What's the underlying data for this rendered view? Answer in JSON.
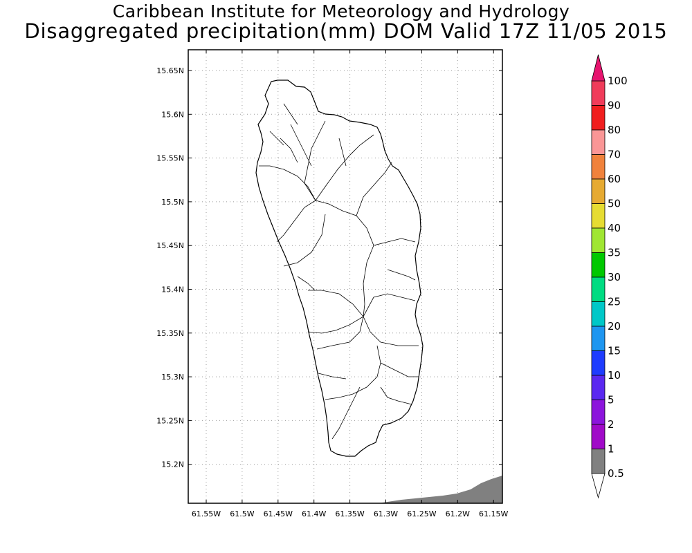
{
  "title": {
    "line1": "Caribbean Institute for Meteorology and Hydrology",
    "line2": "Disaggregated precipitation(mm) DOM Valid 17Z 11/05 2015"
  },
  "map": {
    "lat_ticks": [
      "15.65N",
      "15.6N",
      "15.55N",
      "15.5N",
      "15.45N",
      "15.4N",
      "15.35N",
      "15.3N",
      "15.25N",
      "15.2N"
    ],
    "lon_ticks": [
      "61.55W",
      "61.5W",
      "61.45W",
      "61.4W",
      "61.35W",
      "61.3W",
      "61.25W",
      "61.2W",
      "61.15W"
    ],
    "lat_values": [
      15.65,
      15.6,
      15.55,
      15.5,
      15.45,
      15.4,
      15.35,
      15.3,
      15.25,
      15.2
    ],
    "lon_values": [
      -61.55,
      -61.5,
      -61.45,
      -61.4,
      -61.35,
      -61.3,
      -61.25,
      -61.2,
      -61.15
    ],
    "grid": true,
    "land_outline_color": "#000000",
    "precip_shaded_color": "#808080"
  },
  "colorbar": {
    "labels": [
      "100",
      "90",
      "80",
      "70",
      "60",
      "50",
      "40",
      "35",
      "30",
      "25",
      "20",
      "15",
      "10",
      "5",
      "2",
      "1",
      "0.5"
    ],
    "colors": [
      "#f03c5a",
      "#f01e1e",
      "#fa9696",
      "#f0823c",
      "#e6aa32",
      "#e6dc32",
      "#a0e632",
      "#00c800",
      "#00dc82",
      "#00c8c8",
      "#1e96f0",
      "#1e3cff",
      "#5a28f0",
      "#8c14dc",
      "#a00ac8",
      "#808080"
    ],
    "top_arrow_color": "#e6146e",
    "bottom_arrow_color": "#ffffff"
  }
}
